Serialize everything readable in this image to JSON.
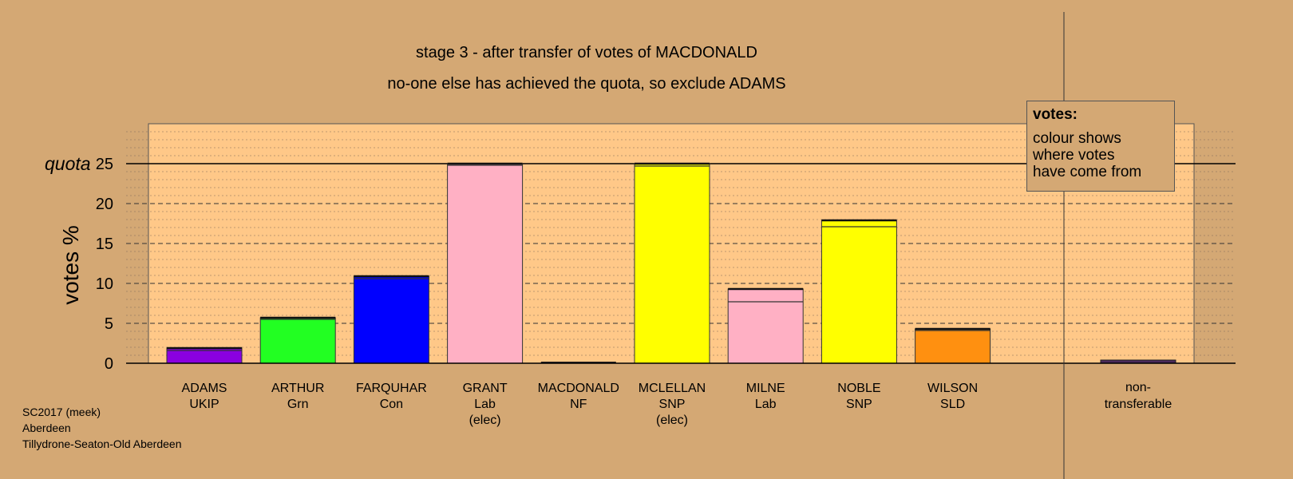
{
  "chart_data": {
    "type": "bar",
    "title": "stage 3 - after transfer of votes of MACDONALD",
    "subtitle": "no-one else has achieved the quota, so exclude ADAMS",
    "ylabel": "votes %",
    "ylim": [
      0,
      30
    ],
    "yticks": [
      0,
      5,
      10,
      15,
      20,
      25
    ],
    "quota": 25,
    "quota_label": "quota",
    "grid": true,
    "bars": [
      {
        "id": "adams",
        "name": "ADAMS",
        "party": "UKIP",
        "note": "",
        "color": "#8a00e0",
        "base": 1.6,
        "total": 1.9
      },
      {
        "id": "arthur",
        "name": "ARTHUR",
        "party": "Grn",
        "note": "",
        "color": "#22ff22",
        "base": 5.5,
        "total": 5.7
      },
      {
        "id": "farquhar",
        "name": "FARQUHAR",
        "party": "Con",
        "note": "",
        "color": "#0000ff",
        "base": 10.6,
        "total": 10.9
      },
      {
        "id": "grant",
        "name": "GRANT",
        "party": "Lab",
        "note": "(elec)",
        "color": "#ffb0c4",
        "base": 24.8,
        "total": 25.0
      },
      {
        "id": "macdonald",
        "name": "MACDONALD",
        "party": "NF",
        "note": "",
        "color": "#222222",
        "base": 0,
        "total": 0.1
      },
      {
        "id": "mclellan",
        "name": "MCLELLAN",
        "party": "SNP",
        "note": "(elec)",
        "color": "#ffff00",
        "base": 24.7,
        "total": 25.0
      },
      {
        "id": "milne",
        "name": "MILNE",
        "party": "Lab",
        "note": "",
        "color": "#ffb0c4",
        "base": 7.7,
        "total": 9.3
      },
      {
        "id": "noble",
        "name": "NOBLE",
        "party": "SNP",
        "note": "",
        "color": "#ffff00",
        "base": 17.1,
        "total": 17.9
      },
      {
        "id": "wilson",
        "name": "WILSON",
        "party": "SLD",
        "note": "",
        "color": "#ff9010",
        "base": 4.1,
        "total": 4.3
      }
    ],
    "nontransferable": {
      "line1": "non-",
      "line2": "transferable",
      "color": "#4a2a5a",
      "value": 0.4
    },
    "legend": {
      "title": "votes:",
      "text": "colour shows\nwhere votes\nhave come from",
      "position": "top-right"
    }
  },
  "footer": {
    "line1": "SC2017 (meek)",
    "line2": "Aberdeen",
    "line3": "Tillydrone-Seaton-Old Aberdeen"
  },
  "colors": {
    "background": "#d4a874",
    "plot_area": "#ffc888"
  }
}
